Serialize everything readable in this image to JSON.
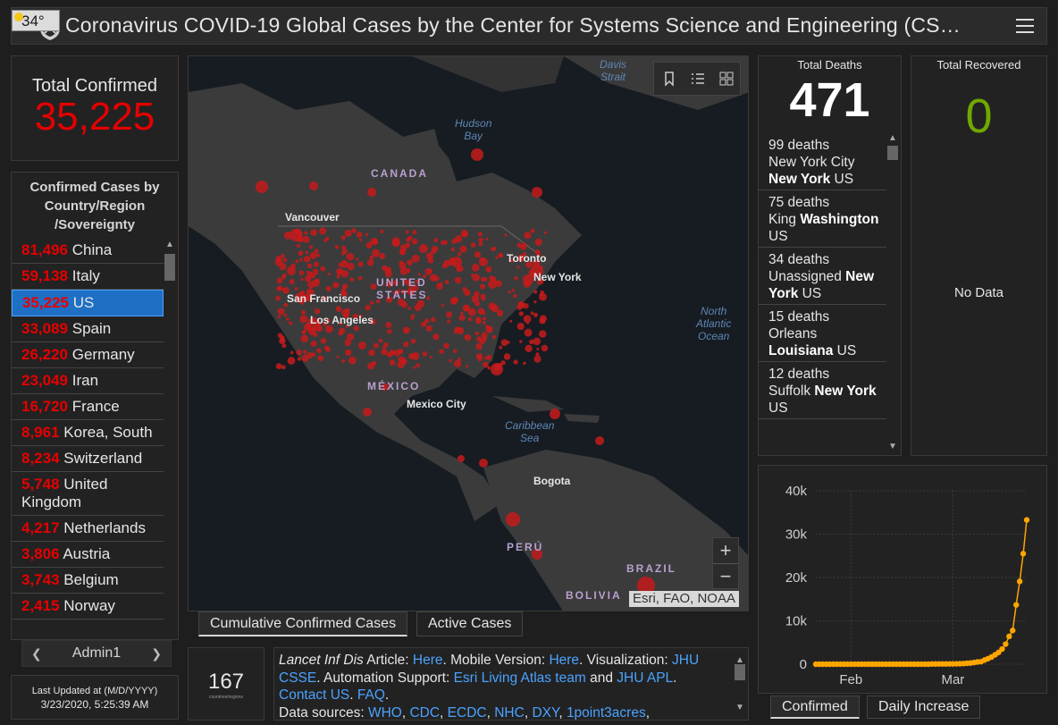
{
  "header": {
    "title": "Coronavirus COVID-19 Global Cases by the Center for Systems Science and Engineering (CS…",
    "temperature": "34°"
  },
  "total_confirmed": {
    "label": "Total Confirmed",
    "value": "35,225"
  },
  "country_panel": {
    "title_lines": [
      "Confirmed Cases by",
      "Country/Region",
      "/Sovereignty"
    ],
    "items": [
      {
        "count": "81,496",
        "name": "China"
      },
      {
        "count": "59,138",
        "name": "Italy"
      },
      {
        "count": "35,225",
        "name": "US",
        "selected": true
      },
      {
        "count": "33,089",
        "name": "Spain"
      },
      {
        "count": "26,220",
        "name": "Germany"
      },
      {
        "count": "23,049",
        "name": "Iran"
      },
      {
        "count": "16,720",
        "name": "France"
      },
      {
        "count": "8,961",
        "name": "Korea, South"
      },
      {
        "count": "8,234",
        "name": "Switzerland"
      },
      {
        "count": "5,748",
        "name": "United Kingdom"
      },
      {
        "count": "4,217",
        "name": "Netherlands"
      },
      {
        "count": "3,806",
        "name": "Austria"
      },
      {
        "count": "3,743",
        "name": "Belgium"
      },
      {
        "count": "2,415",
        "name": "Norway"
      }
    ],
    "admin_label": "Admin1"
  },
  "last_updated": {
    "label": "Last Updated at (M/D/YYYY)",
    "value": "3/23/2020, 5:25:39 AM"
  },
  "map": {
    "attribution": "Esri, FAO, NOAA",
    "labels": {
      "canada": "CANADA",
      "united_states": "UNITED\nSTATES",
      "mexico": "MÉXICO",
      "peru": "PERÚ",
      "brazil": "BRAZIL",
      "bolivia": "BOLIVIA",
      "vancouver": "Vancouver",
      "toronto": "Toronto",
      "new_york": "New York",
      "san_francisco": "San Francisco",
      "los_angeles": "Los Angeles",
      "mexico_city": "Mexico City",
      "bogota": "Bogota",
      "hudson_bay": "Hudson\nBay",
      "davis_strait": "Davis\nStrait",
      "north_atlantic": "North\nAtlantic\nOcean",
      "caribbean": "Caribbean\nSea"
    }
  },
  "map_tabs": [
    "Cumulative Confirmed Cases",
    "Active Cases"
  ],
  "country_count": {
    "value": "167",
    "label": "countries/regions"
  },
  "info": {
    "lancet_prefix": "Lancet Inf Dis",
    "article_text": " Article: ",
    "here1": "Here",
    "mobile_text": ". Mobile Version: ",
    "here2": "Here",
    "viz_text": ". Visualization: ",
    "jhu_csse": "JHU CSSE",
    "auto_text": ". Automation Support: ",
    "esri": "Esri Living Atlas team",
    "and_text": " and ",
    "jhu_apl": "JHU APL",
    "dot1": ". ",
    "contact": "Contact US",
    "dot2": ". ",
    "faq": "FAQ",
    "dot3": ".",
    "sources_text": "Data sources: ",
    "sources": [
      "WHO",
      "CDC",
      "ECDC",
      "NHC",
      "DXY",
      "1point3acres"
    ]
  },
  "deaths": {
    "title": "Total Deaths",
    "value": "471",
    "items": [
      {
        "count": "99 deaths",
        "place": "New York City",
        "region": "New York",
        "country": "US"
      },
      {
        "count": "75 deaths",
        "place": "King",
        "region": "Washington",
        "country": "US"
      },
      {
        "count": "34 deaths",
        "place": "Unassigned",
        "region": "New York",
        "country": "US"
      },
      {
        "count": "15 deaths",
        "place": "Orleans",
        "region": "Louisiana",
        "country": "US"
      },
      {
        "count": "12 deaths",
        "place": "Suffolk",
        "region": "New York",
        "country": "US"
      }
    ]
  },
  "recovered": {
    "title": "Total Recovered",
    "value": "0",
    "no_data": "No Data"
  },
  "chart_tabs": [
    "Confirmed",
    "Daily Increase"
  ],
  "chart_data": {
    "type": "line",
    "title": "",
    "xlabel": "",
    "ylabel": "",
    "ytick_labels": [
      "0",
      "10k",
      "20k",
      "30k",
      "40k"
    ],
    "xtick_labels": [
      "Feb",
      "Mar"
    ],
    "ylim": [
      0,
      40000
    ],
    "color": "#ffa500",
    "series": [
      {
        "x": [
          "1/22",
          "1/23",
          "1/24",
          "1/25",
          "1/26",
          "1/27",
          "1/28",
          "1/29",
          "1/30",
          "1/31",
          "2/1",
          "2/2",
          "2/3",
          "2/4",
          "2/5",
          "2/6",
          "2/7",
          "2/8",
          "2/9",
          "2/10",
          "2/11",
          "2/12",
          "2/13",
          "2/14",
          "2/15",
          "2/16",
          "2/17",
          "2/18",
          "2/19",
          "2/20",
          "2/21",
          "2/22",
          "2/23",
          "2/24",
          "2/25",
          "2/26",
          "2/27",
          "2/28",
          "2/29",
          "3/1",
          "3/2",
          "3/3",
          "3/4",
          "3/5",
          "3/6",
          "3/7",
          "3/8",
          "3/9",
          "3/10",
          "3/11",
          "3/12",
          "3/13",
          "3/14",
          "3/15",
          "3/16",
          "3/17",
          "3/18",
          "3/19",
          "3/20",
          "3/21",
          "3/22"
        ],
        "values": [
          1,
          1,
          2,
          2,
          5,
          5,
          5,
          5,
          5,
          7,
          8,
          8,
          11,
          11,
          11,
          11,
          11,
          11,
          11,
          11,
          12,
          12,
          13,
          13,
          13,
          13,
          13,
          13,
          13,
          13,
          15,
          15,
          15,
          51,
          51,
          57,
          58,
          60,
          68,
          74,
          98,
          118,
          149,
          217,
          262,
          402,
          518,
          583,
          959,
          1281,
          1663,
          2179,
          2727,
          3499,
          4632,
          6421,
          7786,
          13680,
          19101,
          25493,
          33276
        ]
      }
    ]
  }
}
